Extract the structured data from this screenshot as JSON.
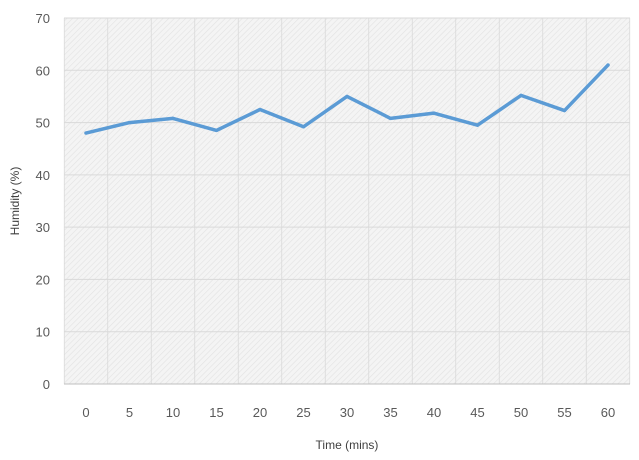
{
  "chart_data": {
    "type": "line",
    "title": "",
    "xlabel": "Time (mins)",
    "ylabel": "Humidity (%)",
    "x": [
      0,
      5,
      10,
      15,
      20,
      25,
      30,
      35,
      40,
      45,
      50,
      55,
      60
    ],
    "x_tick_labels": [
      "0",
      "5",
      "10",
      "15",
      "20",
      "25",
      "30",
      "35",
      "40",
      "45",
      "50",
      "55",
      "60"
    ],
    "y_tick_labels": [
      "0",
      "10",
      "20",
      "30",
      "40",
      "50",
      "60",
      "70"
    ],
    "ylim": [
      0,
      70
    ],
    "grid": true,
    "legend": "none",
    "series": [
      {
        "values": [
          48,
          50,
          50.8,
          48.5,
          52.5,
          49.2,
          55,
          50.8,
          51.8,
          49.5,
          55.2,
          52.3,
          61
        ],
        "color": "#5b9bd5"
      }
    ],
    "colors": {
      "plot_background": "#f2f2f2",
      "grid": "#d9d9d9",
      "axis": "#bfbfbf"
    }
  }
}
